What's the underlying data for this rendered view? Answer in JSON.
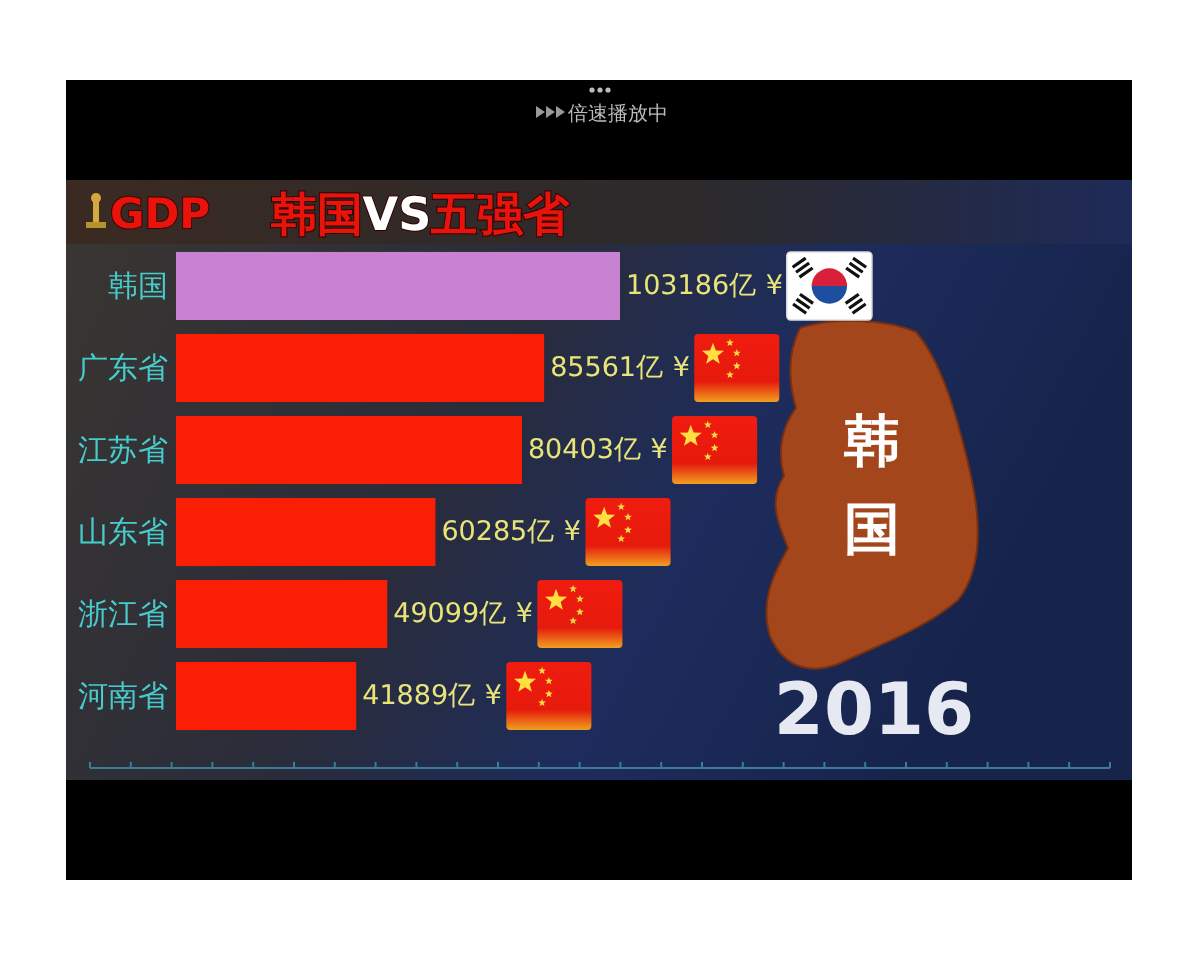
{
  "chart_data": {
    "type": "bar",
    "orientation": "horizontal",
    "title": "韩国VS五强省",
    "subtitle": "GDP",
    "categories": [
      "韩国",
      "广东省",
      "江苏省",
      "山东省",
      "浙江省",
      "河南省"
    ],
    "values": [
      103186,
      85561,
      80403,
      60285,
      49099,
      41889
    ],
    "colors": [
      "#c882d2",
      "#fa1e05",
      "#fa1e05",
      "#fa1e05",
      "#fa1e05",
      "#fa1e05"
    ],
    "value_labels": [
      "103186亿 ¥",
      "85561亿 ¥",
      "80403亿 ¥",
      "60285亿 ¥",
      "49099亿 ¥",
      "41889亿 ¥"
    ],
    "annotations": [
      "2016",
      "韩国",
      "倍速播放中"
    ]
  }
}
